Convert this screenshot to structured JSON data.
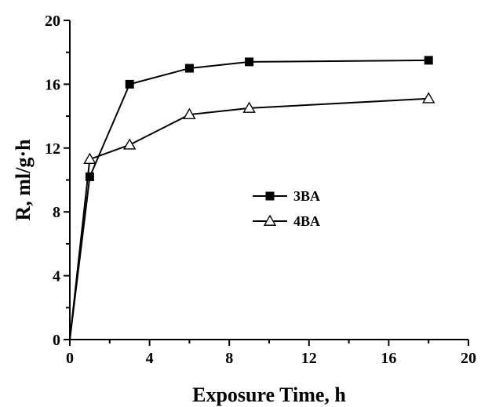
{
  "chart_data": {
    "type": "line",
    "title": "",
    "xlabel": "Exposure Time, h",
    "ylabel": "R, ml/g·h",
    "xlim": [
      0,
      20
    ],
    "ylim": [
      0,
      20
    ],
    "xticks": [
      0,
      4,
      8,
      12,
      16,
      20
    ],
    "yticks": [
      0,
      4,
      8,
      12,
      16,
      20
    ],
    "xtick_labels": [
      "0",
      "4",
      "8",
      "12",
      "16",
      "20"
    ],
    "ytick_labels": [
      "0",
      "4",
      "8",
      "12",
      "16",
      "20"
    ],
    "grid": false,
    "legend_position": "center-right",
    "series": [
      {
        "name": "3BA",
        "marker": "filled-square",
        "color": "#000000",
        "x": [
          0,
          1,
          3,
          6,
          9,
          18
        ],
        "y": [
          0,
          10.2,
          16.0,
          17.0,
          17.4,
          17.5
        ]
      },
      {
        "name": "4BA",
        "marker": "open-triangle",
        "color": "#000000",
        "x": [
          0,
          1,
          3,
          6,
          9,
          18
        ],
        "y": [
          0,
          11.3,
          12.2,
          14.1,
          14.5,
          15.1
        ]
      }
    ]
  }
}
